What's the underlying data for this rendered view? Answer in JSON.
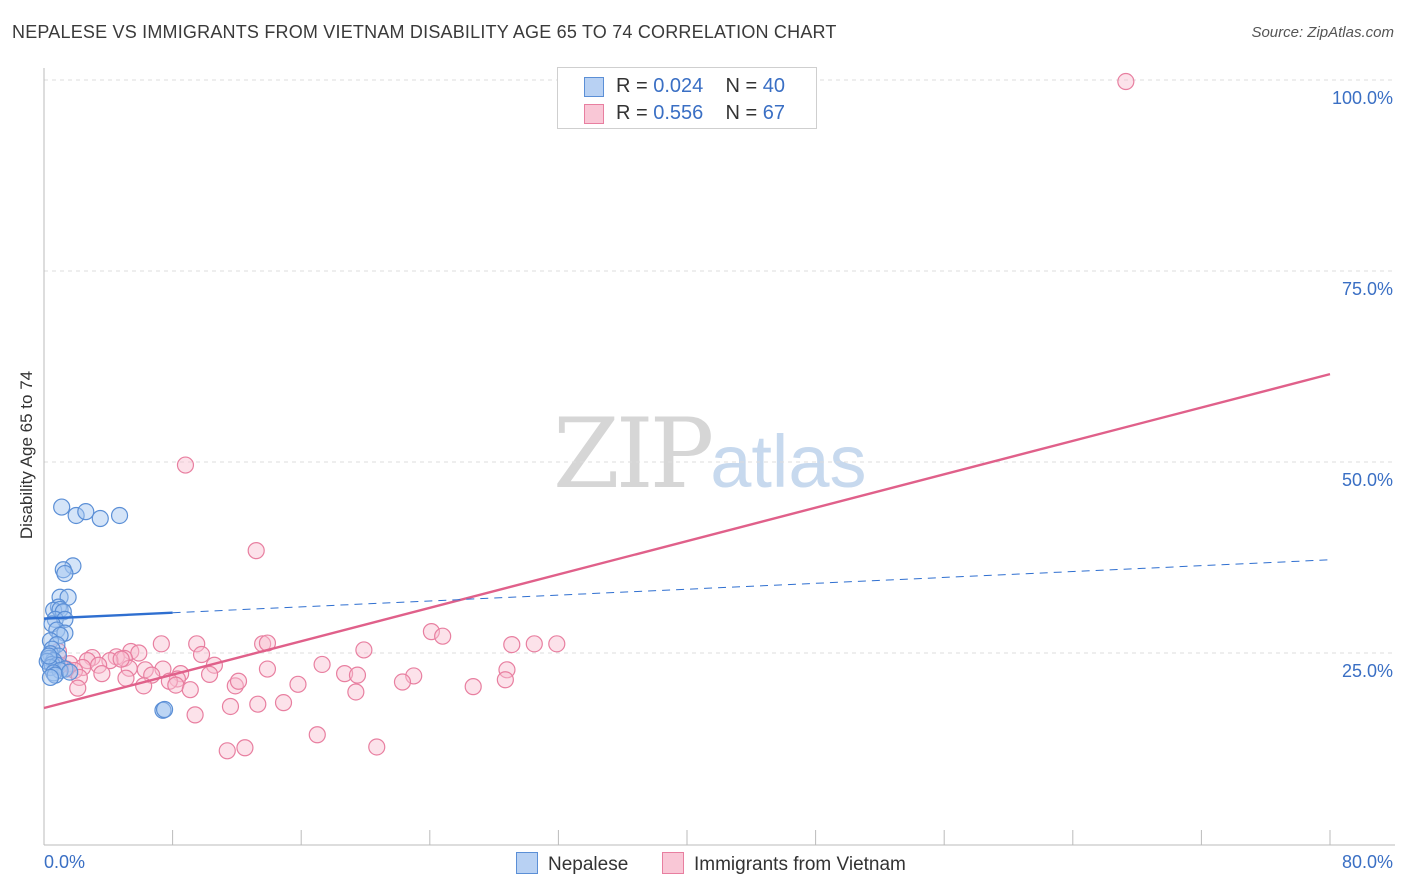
{
  "header": {
    "title": "NEPALESE VS IMMIGRANTS FROM VIETNAM DISABILITY AGE 65 TO 74 CORRELATION CHART",
    "source": "Source: ZipAtlas.com"
  },
  "watermark": {
    "zip": "ZIP",
    "atlas": "atlas"
  },
  "legend_top": {
    "rows": [
      {
        "r_label": "R =",
        "r_value": "0.024",
        "n_label": "N =",
        "n_value": "40"
      },
      {
        "r_label": "R =",
        "r_value": "0.556",
        "n_label": "N =",
        "n_value": "67"
      }
    ]
  },
  "chart_data": {
    "type": "scatter",
    "title": "NEPALESE VS IMMIGRANTS FROM VIETNAM DISABILITY AGE 65 TO 74 CORRELATION CHART",
    "xlabel": "",
    "ylabel": "Disability Age 65 to 74",
    "xlim": [
      0,
      80
    ],
    "ylim": [
      0,
      105
    ],
    "x_tick_labels": [
      "0.0%",
      "80.0%"
    ],
    "y_ticks": [
      25,
      50,
      75,
      100
    ],
    "y_tick_labels": [
      "25.0%",
      "50.0%",
      "75.0%",
      "100.0%"
    ],
    "grid": true,
    "colors": {
      "nepalese": "#5b8fd6",
      "vietnam": "#e87fa0",
      "nepalese_line": "#2f6fd0",
      "vietnam_line": "#e0608a"
    },
    "series": [
      {
        "name": "Nepalese",
        "R": 0.024,
        "N": 40,
        "trend": {
          "x0": 0,
          "y0": 29.5,
          "x1": 80,
          "y1": 37.2,
          "solid_until": 8
        },
        "points": [
          [
            1.1,
            44.1
          ],
          [
            2.0,
            43.0
          ],
          [
            2.6,
            43.5
          ],
          [
            3.5,
            42.6
          ],
          [
            4.7,
            43.0
          ],
          [
            1.8,
            36.4
          ],
          [
            1.2,
            35.9
          ],
          [
            1.3,
            35.4
          ],
          [
            1.0,
            32.3
          ],
          [
            1.5,
            32.3
          ],
          [
            0.9,
            31.0
          ],
          [
            0.6,
            30.6
          ],
          [
            1.0,
            30.7
          ],
          [
            1.2,
            30.4
          ],
          [
            0.7,
            29.4
          ],
          [
            1.3,
            29.4
          ],
          [
            0.5,
            28.8
          ],
          [
            0.8,
            28.0
          ],
          [
            1.3,
            27.6
          ],
          [
            1.0,
            27.3
          ],
          [
            0.4,
            26.6
          ],
          [
            0.8,
            26.1
          ],
          [
            0.5,
            25.5
          ],
          [
            0.4,
            24.9
          ],
          [
            0.9,
            24.6
          ],
          [
            0.3,
            24.3
          ],
          [
            0.6,
            24.0
          ],
          [
            0.2,
            23.9
          ],
          [
            0.5,
            23.5
          ],
          [
            0.8,
            23.4
          ],
          [
            0.4,
            23.1
          ],
          [
            1.3,
            22.9
          ],
          [
            1.0,
            22.7
          ],
          [
            0.6,
            22.4
          ],
          [
            0.7,
            22.1
          ],
          [
            0.4,
            21.8
          ],
          [
            7.4,
            17.5
          ],
          [
            7.5,
            17.6
          ],
          [
            0.3,
            24.6
          ],
          [
            1.6,
            22.5
          ]
        ]
      },
      {
        "name": "Immigrants from Vietnam",
        "R": 0.556,
        "N": 67,
        "trend": {
          "x0": 0,
          "y0": 17.8,
          "x1": 80,
          "y1": 61.5
        },
        "points": [
          [
            67.3,
            99.8
          ],
          [
            8.8,
            49.6
          ],
          [
            13.2,
            38.4
          ],
          [
            24.1,
            27.8
          ],
          [
            24.8,
            27.2
          ],
          [
            29.1,
            26.1
          ],
          [
            30.5,
            26.2
          ],
          [
            31.9,
            26.2
          ],
          [
            7.3,
            26.2
          ],
          [
            9.5,
            26.2
          ],
          [
            13.6,
            26.2
          ],
          [
            13.9,
            26.3
          ],
          [
            19.9,
            25.4
          ],
          [
            5.4,
            25.2
          ],
          [
            5.9,
            25.0
          ],
          [
            9.8,
            24.8
          ],
          [
            0.9,
            25.2
          ],
          [
            3.0,
            24.4
          ],
          [
            4.5,
            24.5
          ],
          [
            5.0,
            24.3
          ],
          [
            2.7,
            24.0
          ],
          [
            4.1,
            24.0
          ],
          [
            17.3,
            23.5
          ],
          [
            1.6,
            23.6
          ],
          [
            0.9,
            23.3
          ],
          [
            3.4,
            23.4
          ],
          [
            10.6,
            23.4
          ],
          [
            2.4,
            23.1
          ],
          [
            1.4,
            22.9
          ],
          [
            5.3,
            23.0
          ],
          [
            13.9,
            22.9
          ],
          [
            1.9,
            22.7
          ],
          [
            6.3,
            22.8
          ],
          [
            7.4,
            22.9
          ],
          [
            28.8,
            22.8
          ],
          [
            18.7,
            22.3
          ],
          [
            19.5,
            22.1
          ],
          [
            8.5,
            22.3
          ],
          [
            10.3,
            22.2
          ],
          [
            6.7,
            22.1
          ],
          [
            8.3,
            21.6
          ],
          [
            23.0,
            22.0
          ],
          [
            2.2,
            21.8
          ],
          [
            5.1,
            21.7
          ],
          [
            7.8,
            21.3
          ],
          [
            28.7,
            21.5
          ],
          [
            8.2,
            20.8
          ],
          [
            6.2,
            20.7
          ],
          [
            11.9,
            20.7
          ],
          [
            26.7,
            20.6
          ],
          [
            2.1,
            20.4
          ],
          [
            9.1,
            20.2
          ],
          [
            19.4,
            19.9
          ],
          [
            14.9,
            18.5
          ],
          [
            13.3,
            18.3
          ],
          [
            11.6,
            18.0
          ],
          [
            9.4,
            16.9
          ],
          [
            17.0,
            14.3
          ],
          [
            20.7,
            12.7
          ],
          [
            12.5,
            12.6
          ],
          [
            11.4,
            12.2
          ],
          [
            1.0,
            23.4
          ],
          [
            4.8,
            24.2
          ],
          [
            3.6,
            22.3
          ],
          [
            12.1,
            21.3
          ],
          [
            15.8,
            20.9
          ],
          [
            22.3,
            21.2
          ]
        ]
      }
    ]
  },
  "bottom_legend": {
    "items": [
      {
        "label": "Nepalese"
      },
      {
        "label": "Immigrants from Vietnam"
      }
    ]
  }
}
